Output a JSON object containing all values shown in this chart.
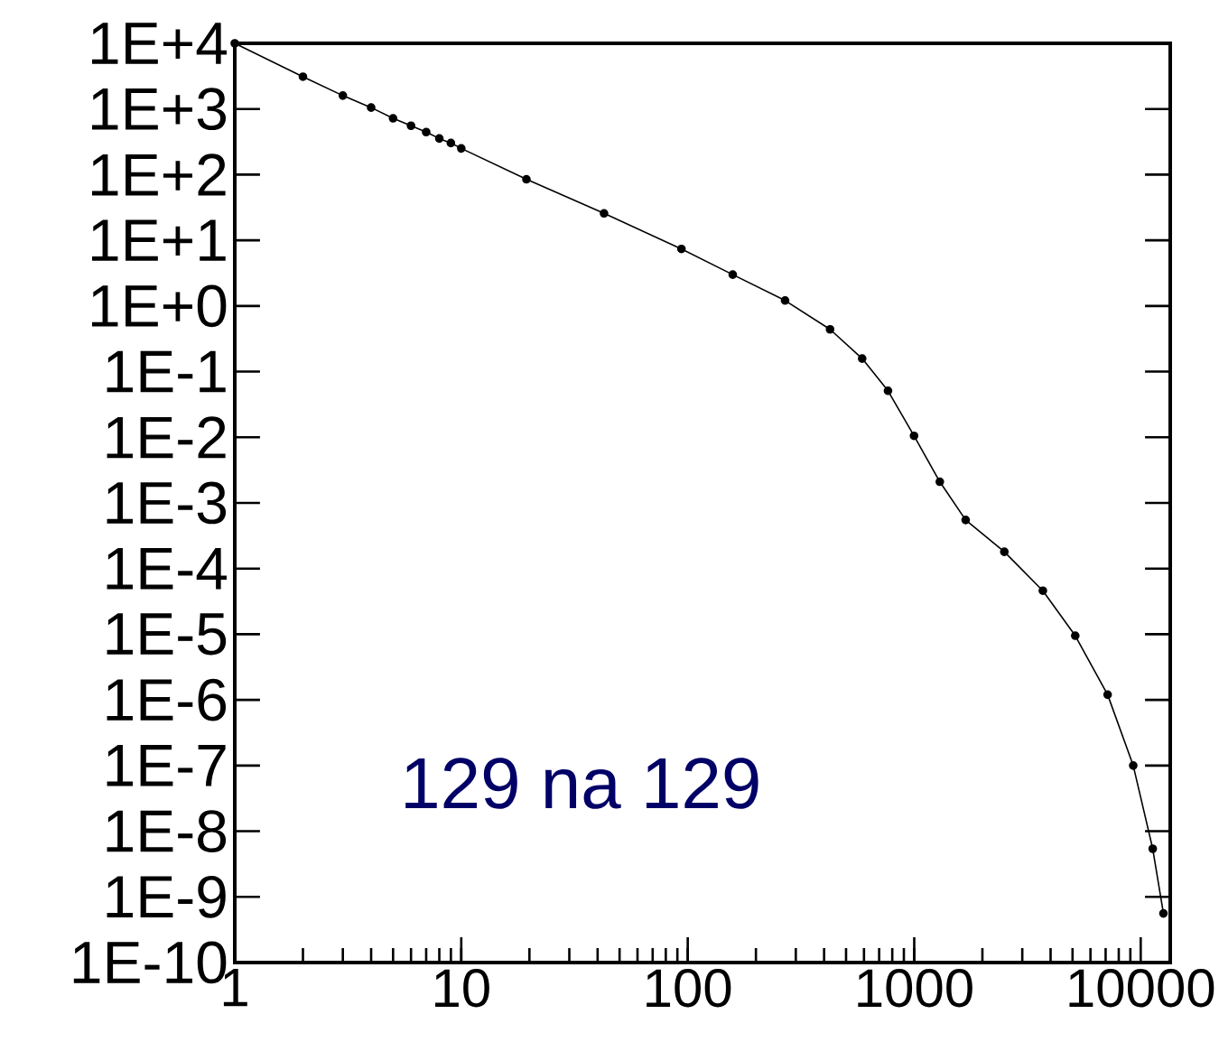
{
  "chart_data": {
    "type": "line",
    "log": "xy",
    "marker": "circle",
    "line_style": "solid",
    "xlim": [
      1,
      13500
    ],
    "ylim": [
      1e-10,
      10000
    ],
    "xticks": [
      1,
      10,
      100,
      1000,
      10000
    ],
    "yticks": [
      {
        "value": 10000.0,
        "label": "1E+4"
      },
      {
        "value": 1000.0,
        "label": "1E+3"
      },
      {
        "value": 100.0,
        "label": "1E+2"
      },
      {
        "value": 10.0,
        "label": "1E+1"
      },
      {
        "value": 1,
        "label": "1E+0"
      },
      {
        "value": 0.1,
        "label": "1E-1"
      },
      {
        "value": 0.01,
        "label": "1E-2"
      },
      {
        "value": 0.001,
        "label": "1E-3"
      },
      {
        "value": 0.0001,
        "label": "1E-4"
      },
      {
        "value": 1e-05,
        "label": "1E-5"
      },
      {
        "value": 1e-06,
        "label": "1E-6"
      },
      {
        "value": 1e-07,
        "label": "1E-7"
      },
      {
        "value": 1e-08,
        "label": "1E-8"
      },
      {
        "value": 1e-09,
        "label": "1E-9"
      },
      {
        "value": 1e-10,
        "label": "1E-10"
      }
    ],
    "annotations": [
      "129 na 129"
    ],
    "series": [
      {
        "color": "#000000",
        "x": [
          1,
          2,
          3,
          4,
          5,
          6,
          7,
          8,
          9,
          10,
          19.4,
          42.7,
          93.8,
          158,
          269,
          425,
          589,
          766,
          998,
          1297,
          1687,
          2500,
          3698,
          5140,
          7145,
          9268,
          11300,
          12600
        ],
        "values": [
          10000,
          3100,
          1600,
          1050,
          720,
          556,
          445,
          355,
          303,
          251,
          85,
          25.7,
          7.38,
          3.0,
          1.21,
          0.44,
          0.158,
          0.051,
          0.0105,
          0.0021,
          0.00055,
          0.00018,
          4.6e-05,
          9.5e-06,
          1.2e-06,
          1e-07,
          5.4e-09,
          5.6e-10
        ]
      }
    ]
  }
}
